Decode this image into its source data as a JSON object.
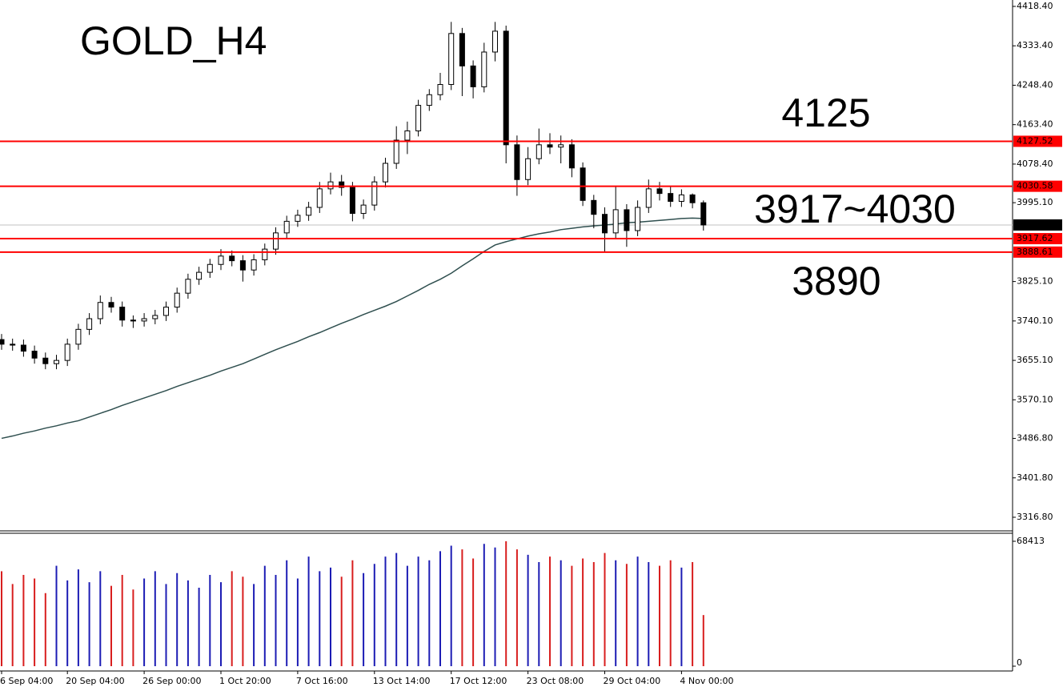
{
  "chart_data": {
    "type": "candlestick",
    "title": "GOLD_H4",
    "title_color": "#ff0000",
    "categories": [
      "6 Sep 04:00",
      null,
      null,
      null,
      null,
      null,
      "20 Sep 04:00",
      null,
      null,
      null,
      null,
      null,
      null,
      "26 Sep 00:00",
      null,
      null,
      null,
      null,
      null,
      null,
      "1 Oct 20:00",
      null,
      null,
      null,
      null,
      null,
      null,
      "7 Oct 16:00",
      null,
      null,
      null,
      null,
      null,
      null,
      "13 Oct 14:00",
      null,
      null,
      null,
      null,
      null,
      null,
      "17 Oct 12:00",
      null,
      null,
      null,
      null,
      null,
      null,
      "23 Oct 08:00",
      null,
      null,
      null,
      null,
      null,
      null,
      "29 Oct 04:00",
      null,
      null,
      null,
      null,
      null,
      null,
      "4 Nov 00:00",
      null,
      null
    ],
    "open": [
      3700,
      3690,
      3688,
      3675,
      3660,
      3648,
      3655,
      3690,
      3722,
      3745,
      3780,
      3770,
      3742,
      3740,
      3745,
      3752,
      3770,
      3800,
      3830,
      3845,
      3862,
      3880,
      3870,
      3850,
      3872,
      3895,
      3930,
      3955,
      3968,
      3985,
      4025,
      4040,
      4028,
      3972,
      3990,
      4040,
      4080,
      4130,
      4150,
      4205,
      4228,
      4250,
      4360,
      4290,
      4245,
      4320,
      4365,
      4120,
      4045,
      4090,
      4120,
      4115,
      4120,
      4070,
      4000,
      3970,
      3930,
      3980,
      3935,
      3985,
      4025,
      4015,
      3998,
      4012,
      3995
    ],
    "high": [
      3712,
      3702,
      3700,
      3687,
      3672,
      3667,
      3702,
      3734,
      3757,
      3795,
      3792,
      3782,
      3752,
      3757,
      3764,
      3782,
      3812,
      3842,
      3857,
      3874,
      3895,
      3892,
      3882,
      3884,
      3907,
      3942,
      3967,
      3980,
      3997,
      4040,
      4060,
      4055,
      4040,
      4002,
      4052,
      4092,
      4160,
      4170,
      4217,
      4240,
      4275,
      4385,
      4372,
      4302,
      4340,
      4385,
      4377,
      4140,
      4115,
      4155,
      4145,
      4140,
      4132,
      4082,
      4012,
      3985,
      4030,
      3992,
      4000,
      4045,
      4040,
      4030,
      4024,
      4015,
      4000
    ],
    "low": [
      3678,
      3676,
      3663,
      3648,
      3636,
      3636,
      3643,
      3678,
      3710,
      3733,
      3758,
      3728,
      3725,
      3728,
      3733,
      3740,
      3758,
      3788,
      3818,
      3833,
      3850,
      3858,
      3825,
      3838,
      3860,
      3883,
      3918,
      3943,
      3956,
      3973,
      4013,
      4010,
      3955,
      3960,
      3978,
      4028,
      4068,
      4100,
      4138,
      4193,
      4216,
      4238,
      4225,
      4220,
      4233,
      4300,
      4080,
      4010,
      4033,
      4078,
      4100,
      4080,
      4050,
      3988,
      3940,
      3888,
      3918,
      3900,
      3923,
      3973,
      4000,
      3986,
      3986,
      3983,
      3935
    ],
    "close": [
      3690,
      3688,
      3675,
      3660,
      3648,
      3655,
      3690,
      3722,
      3745,
      3780,
      3770,
      3742,
      3740,
      3745,
      3752,
      3770,
      3800,
      3830,
      3845,
      3862,
      3880,
      3870,
      3850,
      3872,
      3895,
      3930,
      3955,
      3968,
      3985,
      4025,
      4040,
      4028,
      3972,
      3990,
      4040,
      4080,
      4130,
      4150,
      4205,
      4228,
      4250,
      4360,
      4290,
      4245,
      4320,
      4365,
      4120,
      4045,
      4090,
      4120,
      4115,
      4120,
      4070,
      4000,
      3970,
      3930,
      3980,
      3935,
      3985,
      4025,
      4015,
      3998,
      4012,
      3995,
      3947.1
    ],
    "up_color": "#ffffff",
    "down_color": "#000000",
    "ylim": [
      3289.2,
      4432.2
    ],
    "yticks": [
      {
        "value": 4418.4,
        "label": "4418.40"
      },
      {
        "value": 4333.4,
        "label": "4333.40"
      },
      {
        "value": 4248.4,
        "label": "4248.40"
      },
      {
        "value": 4163.4,
        "label": "4163.40"
      },
      {
        "value": 4078.4,
        "label": "4078.40"
      },
      {
        "value": 3995.1,
        "label": "3995.10"
      },
      {
        "value": 3825.1,
        "label": "3825.10"
      },
      {
        "value": 3740.1,
        "label": "3740.10"
      },
      {
        "value": 3655.1,
        "label": "3655.10"
      },
      {
        "value": 3570.1,
        "label": "3570.10"
      },
      {
        "value": 3486.8,
        "label": "3486.80"
      },
      {
        "value": 3401.8,
        "label": "3401.80"
      },
      {
        "value": 3316.8,
        "label": "3316.80"
      }
    ],
    "ma": {
      "color": "#2f4f4f",
      "values": [
        3487,
        3492,
        3498,
        3503,
        3509,
        3514,
        3520,
        3525,
        3533,
        3541,
        3549,
        3558,
        3566,
        3574,
        3582,
        3590,
        3599,
        3607,
        3615,
        3623,
        3632,
        3640,
        3648,
        3658,
        3668,
        3678,
        3687,
        3696,
        3706,
        3715,
        3725,
        3735,
        3744,
        3754,
        3763,
        3772,
        3782,
        3794,
        3806,
        3819,
        3830,
        3843,
        3859,
        3874,
        3890,
        3904,
        3911,
        3917,
        3923,
        3928,
        3932,
        3937,
        3940,
        3943,
        3945,
        3947,
        3949,
        3952,
        3953,
        3955,
        3957,
        3959,
        3961,
        3962,
        3961
      ]
    },
    "levels": [
      {
        "value": 4127.52,
        "color": "#ff0000"
      },
      {
        "value": 4030.58,
        "color": "#ff0000"
      },
      {
        "value": 3917.62,
        "color": "#ff0000"
      },
      {
        "value": 3888.61,
        "color": "#ff0000"
      }
    ],
    "current_price": {
      "value": 3947.1,
      "label": "3947.10"
    },
    "annotations": [
      {
        "text": "4125",
        "color": "#ff0000"
      },
      {
        "text": "3917~4030",
        "color": "#000080"
      },
      {
        "text": "3890",
        "color": "#ff0000"
      }
    ],
    "volume": {
      "values": [
        52000,
        45000,
        50000,
        48000,
        40000,
        55000,
        47000,
        53000,
        46000,
        52000,
        44000,
        50000,
        42000,
        48000,
        52000,
        45000,
        51000,
        47000,
        43000,
        50000,
        46000,
        52000,
        49000,
        45000,
        55000,
        50000,
        58000,
        48000,
        60000,
        52000,
        54000,
        49000,
        58000,
        51000,
        56000,
        60000,
        62000,
        55000,
        60000,
        58000,
        63000,
        66000,
        64000,
        59000,
        67000,
        65000,
        68413,
        64000,
        61000,
        57000,
        60000,
        58000,
        55000,
        59000,
        57000,
        62000,
        58000,
        56000,
        60000,
        57000,
        55000,
        58000,
        54000,
        57000,
        28000
      ],
      "ylim": [
        0,
        68413
      ],
      "yticks": [
        68413,
        0
      ],
      "up_color": "#1c1cb4",
      "down_color": "#d81e1e"
    }
  }
}
